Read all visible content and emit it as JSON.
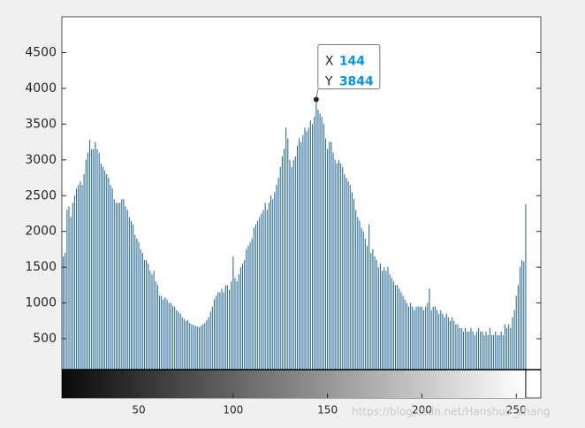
{
  "chart_data": {
    "type": "bar",
    "color": "#2c6e98",
    "xlim": [
      9.25,
      263
    ],
    "ylim": [
      0,
      5000
    ],
    "xticks": [
      50,
      100,
      150,
      200,
      250
    ],
    "yticks": [
      500,
      1000,
      1500,
      2000,
      2500,
      3000,
      3500,
      4000,
      4500
    ],
    "x": [
      9,
      10,
      11,
      12,
      13,
      14,
      15,
      16,
      17,
      18,
      19,
      20,
      21,
      22,
      23,
      24,
      25,
      26,
      27,
      28,
      29,
      30,
      31,
      32,
      33,
      34,
      35,
      36,
      37,
      38,
      39,
      40,
      41,
      42,
      43,
      44,
      45,
      46,
      47,
      48,
      49,
      50,
      51,
      52,
      53,
      54,
      55,
      56,
      57,
      58,
      59,
      60,
      61,
      62,
      63,
      64,
      65,
      66,
      67,
      68,
      69,
      70,
      71,
      72,
      73,
      74,
      75,
      76,
      77,
      78,
      79,
      80,
      81,
      82,
      83,
      84,
      85,
      86,
      87,
      88,
      89,
      90,
      91,
      92,
      93,
      94,
      95,
      96,
      97,
      98,
      99,
      100,
      101,
      102,
      103,
      104,
      105,
      106,
      107,
      108,
      109,
      110,
      111,
      112,
      113,
      114,
      115,
      116,
      117,
      118,
      119,
      120,
      121,
      122,
      123,
      124,
      125,
      126,
      127,
      128,
      129,
      130,
      131,
      132,
      133,
      134,
      135,
      136,
      137,
      138,
      139,
      140,
      141,
      142,
      143,
      144,
      145,
      146,
      147,
      148,
      149,
      150,
      151,
      152,
      153,
      154,
      155,
      156,
      157,
      158,
      159,
      160,
      161,
      162,
      163,
      164,
      165,
      166,
      167,
      168,
      169,
      170,
      171,
      172,
      173,
      174,
      175,
      176,
      177,
      178,
      179,
      180,
      181,
      182,
      183,
      184,
      185,
      186,
      187,
      188,
      189,
      190,
      191,
      192,
      193,
      194,
      195,
      196,
      197,
      198,
      199,
      200,
      201,
      202,
      203,
      204,
      205,
      206,
      207,
      208,
      209,
      210,
      211,
      212,
      213,
      214,
      215,
      216,
      217,
      218,
      219,
      220,
      221,
      222,
      223,
      224,
      225,
      226,
      227,
      228,
      229,
      230,
      231,
      232,
      233,
      234,
      235,
      236,
      237,
      238,
      239,
      240,
      241,
      242,
      243,
      244,
      245,
      246,
      247,
      248,
      249,
      250,
      251,
      252,
      253,
      254,
      255
    ],
    "values": [
      1350,
      1650,
      1700,
      2300,
      2350,
      2200,
      2400,
      2500,
      2600,
      2650,
      2700,
      2650,
      2800,
      3000,
      3100,
      3280,
      3150,
      3150,
      3250,
      3150,
      3100,
      2950,
      2900,
      2850,
      2800,
      2750,
      2650,
      2600,
      2450,
      2400,
      2400,
      2400,
      2450,
      2450,
      2350,
      2300,
      2200,
      2150,
      2100,
      1950,
      1900,
      1850,
      1750,
      1700,
      1600,
      1600,
      1550,
      1450,
      1400,
      1450,
      1300,
      1250,
      1100,
      1100,
      1050,
      1080,
      1050,
      1000,
      1000,
      960,
      950,
      900,
      880,
      850,
      800,
      780,
      750,
      760,
      720,
      700,
      690,
      680,
      670,
      660,
      680,
      700,
      720,
      760,
      800,
      880,
      950,
      1050,
      1100,
      1150,
      1150,
      1200,
      1150,
      1250,
      1250,
      1180,
      1300,
      1650,
      1350,
      1300,
      1400,
      1500,
      1550,
      1600,
      1750,
      1800,
      1850,
      1900,
      2050,
      2100,
      2150,
      2200,
      2250,
      2300,
      2400,
      2300,
      2400,
      2500,
      2450,
      2550,
      2650,
      2750,
      2900,
      3050,
      3150,
      3450,
      3300,
      3000,
      2900,
      3000,
      3050,
      3200,
      3300,
      3250,
      3350,
      3450,
      3400,
      3450,
      3550,
      3500,
      3600,
      3844,
      3700,
      3650,
      3600,
      3500,
      3300,
      3150,
      3250,
      3250,
      3100,
      3000,
      2950,
      3000,
      2950,
      2900,
      2800,
      2750,
      2700,
      2650,
      2550,
      2450,
      2300,
      2200,
      2150,
      2050,
      2000,
      1900,
      1800,
      2100,
      1700,
      1750,
      1650,
      1600,
      1500,
      1550,
      1450,
      1500,
      1450,
      1500,
      1400,
      1350,
      1300,
      1250,
      1250,
      1200,
      1150,
      1100,
      1050,
      1000,
      950,
      1000,
      950,
      900,
      950,
      950,
      950,
      950,
      900,
      950,
      1000,
      1200,
      900,
      950,
      950,
      900,
      850,
      900,
      850,
      800,
      850,
      800,
      750,
      800,
      750,
      700,
      700,
      650,
      650,
      600,
      650,
      600,
      600,
      650,
      600,
      550,
      600,
      650,
      600,
      600,
      550,
      600,
      550,
      650,
      550,
      550,
      600,
      550,
      550,
      600,
      550,
      700,
      650,
      700,
      650,
      800,
      900,
      1100,
      1250,
      1500,
      1600,
      1580,
      2380
    ],
    "datatip": {
      "x_label": "X",
      "x": 144,
      "y_label": "Y",
      "y": 3844
    }
  },
  "watermark": "https://blog.csdn.net/Hanshuir_zhang"
}
